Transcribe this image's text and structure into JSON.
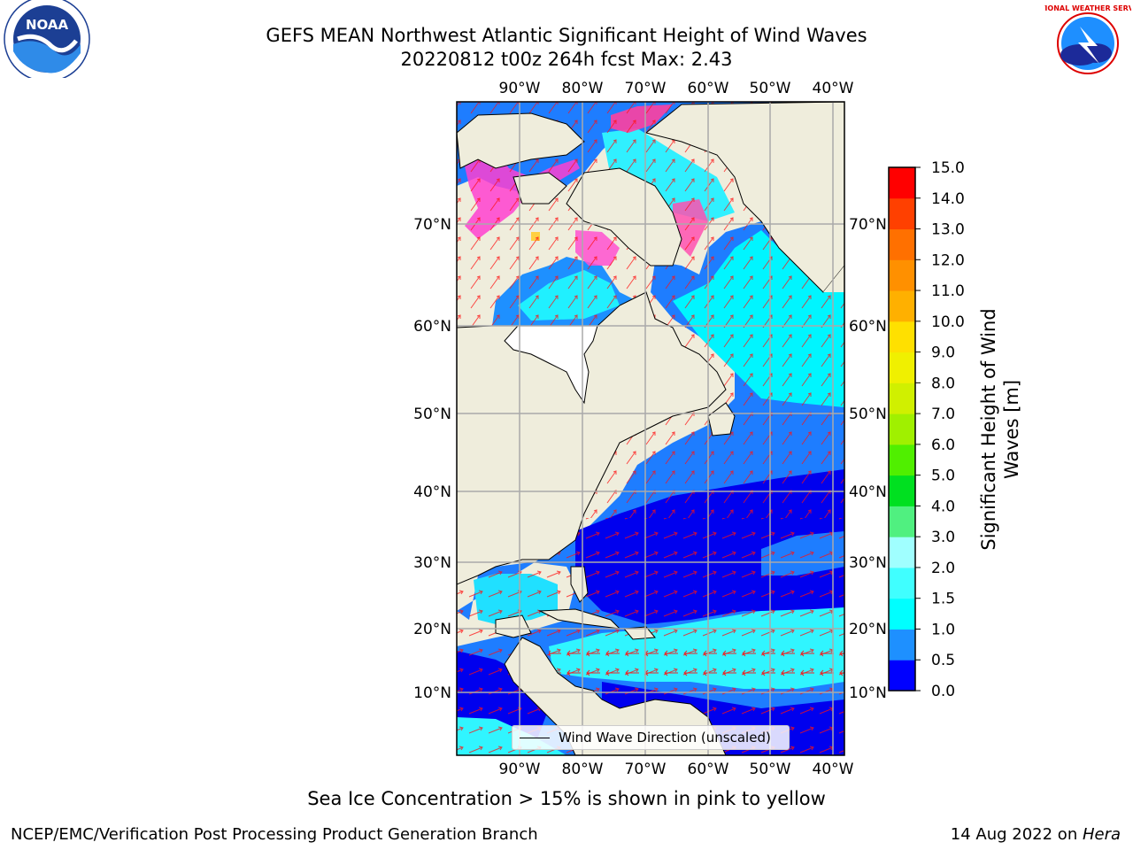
{
  "title": {
    "line1": "GEFS MEAN Northwest Atlantic Significant Height of Wind Waves",
    "line2": "20220812 t00z 264h fcst   Max: 2.43"
  },
  "map": {
    "lon_labels_top": [
      "90°W",
      "80°W",
      "70°W",
      "60°W",
      "50°W",
      "40°W"
    ],
    "lon_labels_bottom": [
      "90°W",
      "80°W",
      "70°W",
      "60°W",
      "50°W",
      "40°W"
    ],
    "lat_labels_left": [
      "70°N",
      "60°N",
      "50°N",
      "40°N",
      "30°N",
      "20°N",
      "10°N"
    ],
    "lat_labels_right": [
      "70°N",
      "60°N",
      "50°N",
      "40°N",
      "30°N",
      "20°N",
      "10°N"
    ],
    "legend_label": "Wind Wave Direction (unscaled)",
    "vector_color": "#ff0000",
    "land_color": "#efeddc"
  },
  "colorbar": {
    "label_line1": "Significant Height of Wind",
    "label_line2": "Waves [m]",
    "ticks": [
      "0.0",
      "0.5",
      "1.0",
      "1.5",
      "2.0",
      "3.0",
      "4.0",
      "5.0",
      "6.0",
      "7.0",
      "8.0",
      "9.0",
      "10.0",
      "11.0",
      "12.0",
      "13.0",
      "14.0",
      "15.0"
    ],
    "colors": [
      "#0000ff",
      "#1e90ff",
      "#00ffff",
      "#40ffff",
      "#a0ffff",
      "#50f080",
      "#00e020",
      "#50ef00",
      "#a0f000",
      "#d0f000",
      "#f0f000",
      "#ffe000",
      "#ffb000",
      "#ff9000",
      "#ff7000",
      "#ff4000",
      "#ff0000"
    ]
  },
  "caption": "Sea Ice Concentration > 15% is shown in pink to yellow",
  "footer": {
    "left": "NCEP/EMC/Verification Post Processing Product Generation Branch",
    "right_date": "14 Aug 2022 on ",
    "right_host": "Hera"
  },
  "logos": {
    "left": "NOAA",
    "right": "NATIONAL WEATHER SERVICE"
  }
}
